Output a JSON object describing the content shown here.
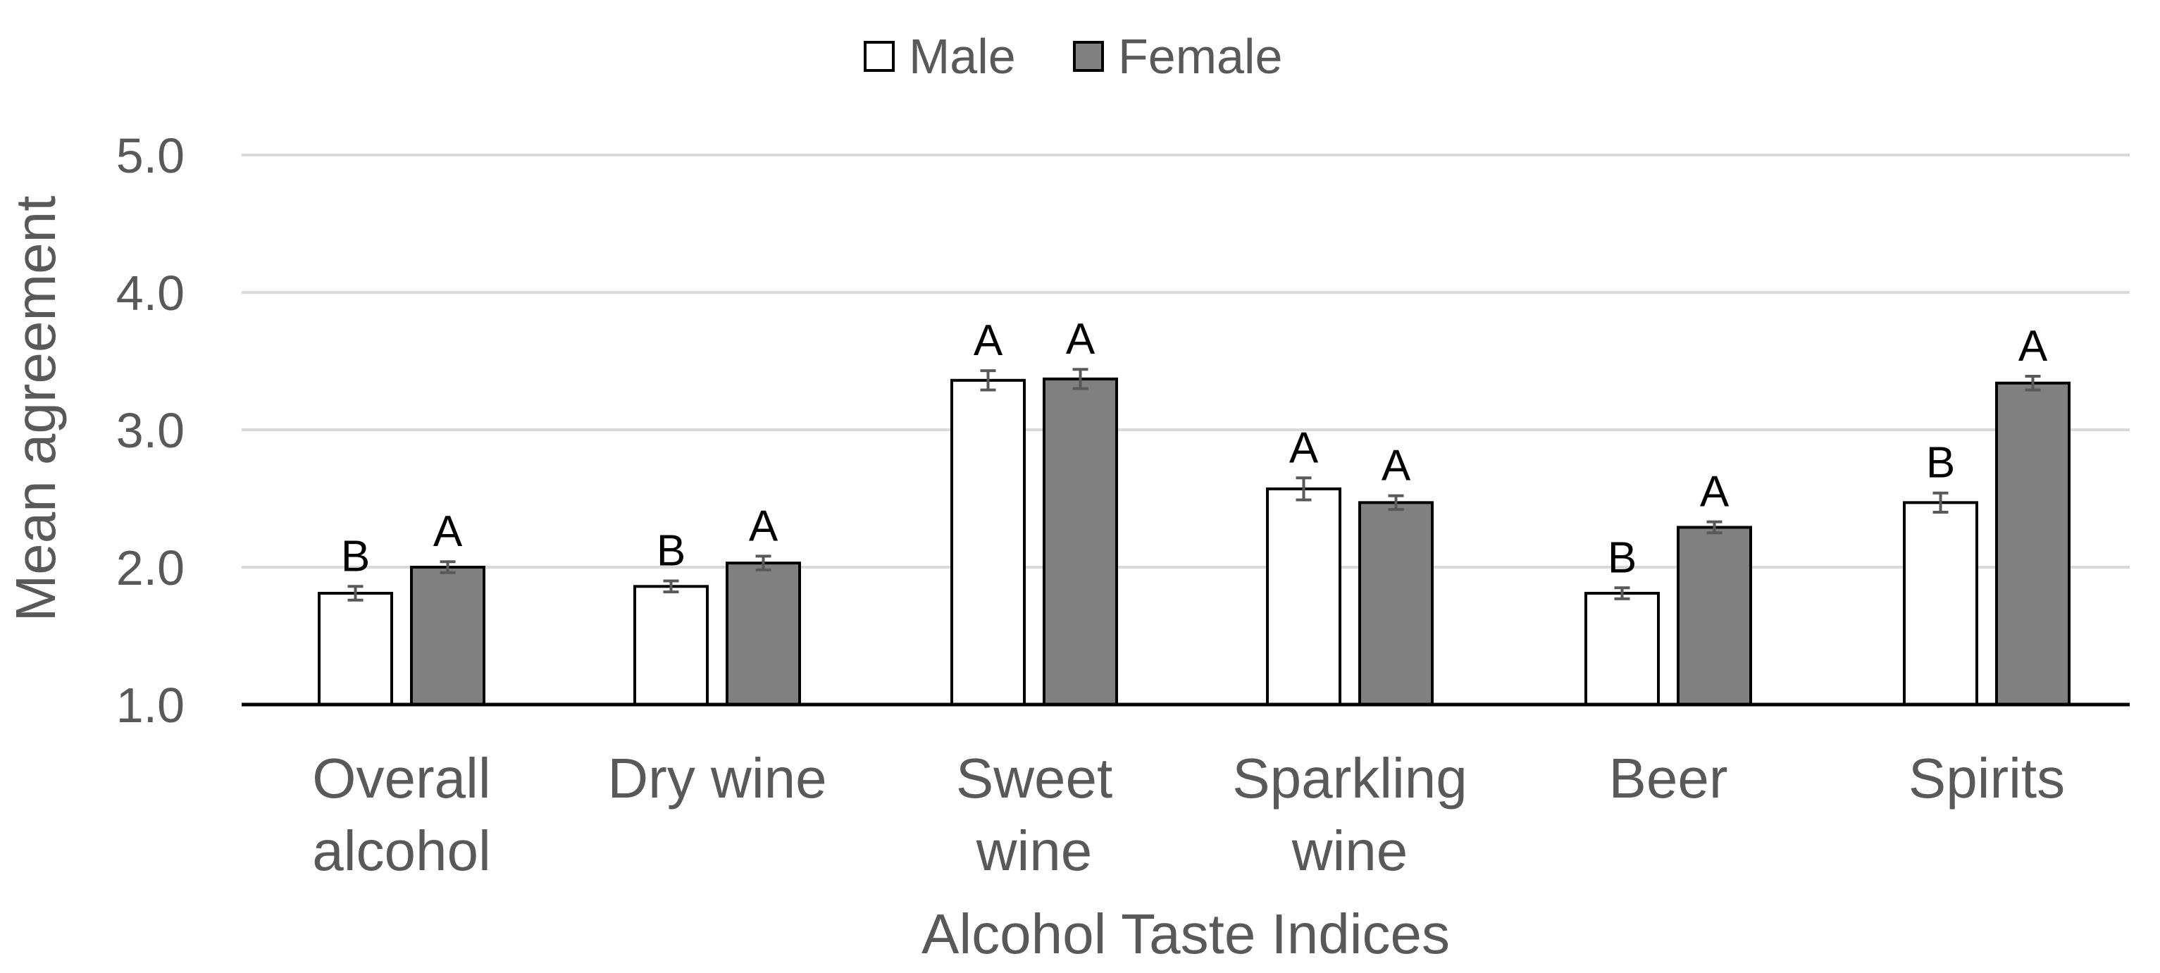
{
  "chart_data": {
    "type": "bar",
    "categories": [
      [
        "Overall",
        "alcohol"
      ],
      [
        "Dry wine"
      ],
      [
        "Sweet",
        "wine"
      ],
      [
        "Sparkling",
        "wine"
      ],
      [
        "Beer"
      ],
      [
        "Spirits"
      ]
    ],
    "series": [
      {
        "name": "Male",
        "color": "#ffffff",
        "values": [
          1.81,
          1.86,
          3.36,
          2.57,
          1.81,
          2.47
        ],
        "errors": [
          0.05,
          0.04,
          0.07,
          0.08,
          0.04,
          0.07
        ],
        "labels": [
          "B",
          "B",
          "A",
          "A",
          "B",
          "B"
        ]
      },
      {
        "name": "Female",
        "color": "#808080",
        "values": [
          2.0,
          2.03,
          3.37,
          2.47,
          2.29,
          3.34
        ],
        "errors": [
          0.04,
          0.05,
          0.07,
          0.05,
          0.04,
          0.05
        ],
        "labels": [
          "A",
          "A",
          "A",
          "A",
          "A",
          "A"
        ]
      }
    ],
    "xlabel": "Alcohol Taste Indices",
    "ylabel": "Mean agreement",
    "ylim": [
      1.0,
      5.0
    ],
    "yticks": [
      "1.0",
      "2.0",
      "3.0",
      "4.0",
      "5.0"
    ],
    "grid": true,
    "legend_position": "top-center",
    "colors": {
      "male_fill": "#ffffff",
      "female_fill": "#808080",
      "bar_stroke": "#000000",
      "grid": "#d9d9d9",
      "text": "#595959",
      "error_bar": "#595959"
    }
  }
}
